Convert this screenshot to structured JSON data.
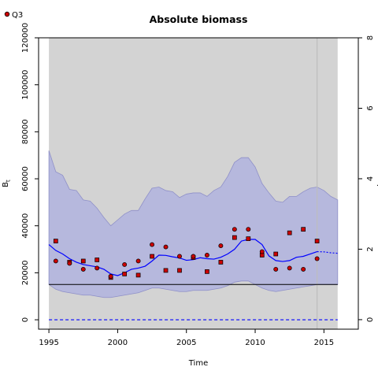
{
  "chart_data": {
    "type": "line",
    "title": "Absolute biomass",
    "xlabel": "Time",
    "ylabel": "B",
    "ylabel_subscript": "t",
    "legend": {
      "placement": "top-left",
      "entries": [
        {
          "label": "Q3",
          "marker": "circle",
          "color": "#cc0000"
        }
      ]
    },
    "x_domain": [
      1994.25,
      2017.5
    ],
    "y_domain": [
      -4000,
      120000
    ],
    "y2_domain": [
      -0.27,
      8.0
    ],
    "x_ticks": [
      1995,
      2000,
      2005,
      2010,
      2015
    ],
    "y_ticks": [
      0,
      20000,
      40000,
      60000,
      80000,
      100000,
      120000
    ],
    "y2_ticks": [
      0,
      2,
      4,
      6,
      8
    ],
    "shaded_period": [
      1995,
      2016
    ],
    "vertical_marker_x": 2014.5,
    "reference_lines": {
      "solid_black": 15000,
      "dashed_blue": 0
    },
    "colors": {
      "panel_shading": "#d3d3d3",
      "ci_band": "#b6b8dd",
      "ci_edge": "#8f90c8",
      "estimate": "#0000ff",
      "observation_fill": "#cc0000"
    },
    "series": [
      {
        "name": "estimate",
        "x": [
          1995.0,
          1995.5,
          1996.0,
          1996.5,
          1997.0,
          1997.5,
          1998.0,
          1998.5,
          1999.0,
          1999.5,
          2000.0,
          2000.5,
          2001.0,
          2001.5,
          2002.0,
          2002.5,
          2003.0,
          2003.5,
          2004.0,
          2004.5,
          2005.0,
          2005.5,
          2006.0,
          2006.5,
          2007.0,
          2007.5,
          2008.0,
          2008.5,
          2009.0,
          2009.5,
          2010.0,
          2010.5,
          2011.0,
          2011.5,
          2012.0,
          2012.5,
          2013.0,
          2013.5,
          2014.0,
          2014.5
        ],
        "values": [
          32000,
          29500,
          28000,
          26000,
          24500,
          23500,
          23000,
          22500,
          21500,
          19500,
          18800,
          20000,
          21500,
          22000,
          22800,
          25000,
          27500,
          27400,
          26800,
          26300,
          25300,
          25600,
          26400,
          26000,
          25800,
          26600,
          28000,
          30000,
          33500,
          34200,
          34200,
          32000,
          27200,
          25200,
          24800,
          25200,
          26600,
          27000,
          28000,
          29000
        ]
      },
      {
        "name": "estimate (projection)",
        "x": [
          2014.5,
          2015.0,
          2015.5,
          2016.0
        ],
        "values": [
          29000,
          28900,
          28500,
          28300
        ]
      },
      {
        "name": "upper CI",
        "x": [
          1995.0,
          1995.5,
          1996.0,
          1996.5,
          1997.0,
          1997.5,
          1998.0,
          1998.5,
          1999.0,
          1999.5,
          2000.0,
          2000.5,
          2001.0,
          2001.5,
          2002.0,
          2002.5,
          2003.0,
          2003.5,
          2004.0,
          2004.5,
          2005.0,
          2005.5,
          2006.0,
          2006.5,
          2007.0,
          2007.5,
          2008.0,
          2008.5,
          2009.0,
          2009.5,
          2010.0,
          2010.5,
          2011.0,
          2011.5,
          2012.0,
          2012.5,
          2013.0,
          2013.5,
          2014.0,
          2014.5,
          2015.0,
          2015.5,
          2016.0
        ],
        "values": [
          72000,
          63000,
          61500,
          55500,
          55000,
          51000,
          50500,
          47500,
          43500,
          40000,
          42500,
          45000,
          46500,
          46500,
          51500,
          56000,
          56500,
          55000,
          54500,
          52000,
          53500,
          54000,
          54000,
          52500,
          55000,
          56500,
          61000,
          67000,
          69000,
          69000,
          65000,
          58000,
          54000,
          50500,
          50000,
          52500,
          52500,
          54500,
          56000,
          56500,
          55000,
          52500,
          51000
        ]
      },
      {
        "name": "lower CI",
        "x": [
          1995.0,
          1995.5,
          1996.0,
          1996.5,
          1997.0,
          1997.5,
          1998.0,
          1998.5,
          1999.0,
          1999.5,
          2000.0,
          2000.5,
          2001.0,
          2001.5,
          2002.0,
          2002.5,
          2003.0,
          2003.5,
          2004.0,
          2004.5,
          2005.0,
          2005.5,
          2006.0,
          2006.5,
          2007.0,
          2007.5,
          2008.0,
          2008.5,
          2009.0,
          2009.5,
          2010.0,
          2010.5,
          2011.0,
          2011.5,
          2012.0,
          2012.5,
          2013.0,
          2013.5,
          2014.0,
          2014.5,
          2015.0,
          2015.5,
          2016.0
        ],
        "values": [
          15000,
          13000,
          12000,
          11500,
          11000,
          10500,
          10500,
          10000,
          9500,
          9500,
          10000,
          10500,
          11000,
          11500,
          12500,
          13500,
          13500,
          13000,
          12500,
          12000,
          12000,
          12500,
          12500,
          12500,
          13000,
          13500,
          14500,
          16000,
          16500,
          16500,
          15000,
          13500,
          12500,
          12000,
          12500,
          13000,
          13500,
          14000,
          14500,
          15000,
          15000,
          15000,
          15000
        ]
      },
      {
        "name": "Q3",
        "marker": "circle",
        "x": [
          1995.5,
          1996.5,
          1997.5,
          1998.5,
          1999.5,
          2000.5,
          2001.5,
          2002.5,
          2003.5,
          2004.5,
          2005.5,
          2006.5,
          2007.5,
          2008.5,
          2009.5,
          2010.5,
          2011.5,
          2012.5,
          2013.5,
          2014.5
        ],
        "values": [
          25000,
          24000,
          21500,
          22000,
          18500,
          23500,
          25000,
          32000,
          31000,
          27000,
          27000,
          27500,
          31500,
          38500,
          38500,
          29000,
          21500,
          22000,
          21500,
          26000
        ]
      },
      {
        "name": "squares",
        "marker": "square",
        "x": [
          1995.5,
          1996.5,
          1997.5,
          1998.5,
          1999.5,
          2000.5,
          2001.5,
          2002.5,
          2003.5,
          2004.5,
          2005.5,
          2006.5,
          2007.5,
          2008.5,
          2009.5,
          2010.5,
          2011.5,
          2012.5,
          2013.5,
          2014.5
        ],
        "values": [
          33500,
          24500,
          25000,
          25500,
          18000,
          19500,
          19000,
          27000,
          21000,
          21000,
          26500,
          20500,
          24500,
          35000,
          34500,
          27500,
          28000,
          37000,
          38500,
          33500
        ]
      }
    ]
  }
}
